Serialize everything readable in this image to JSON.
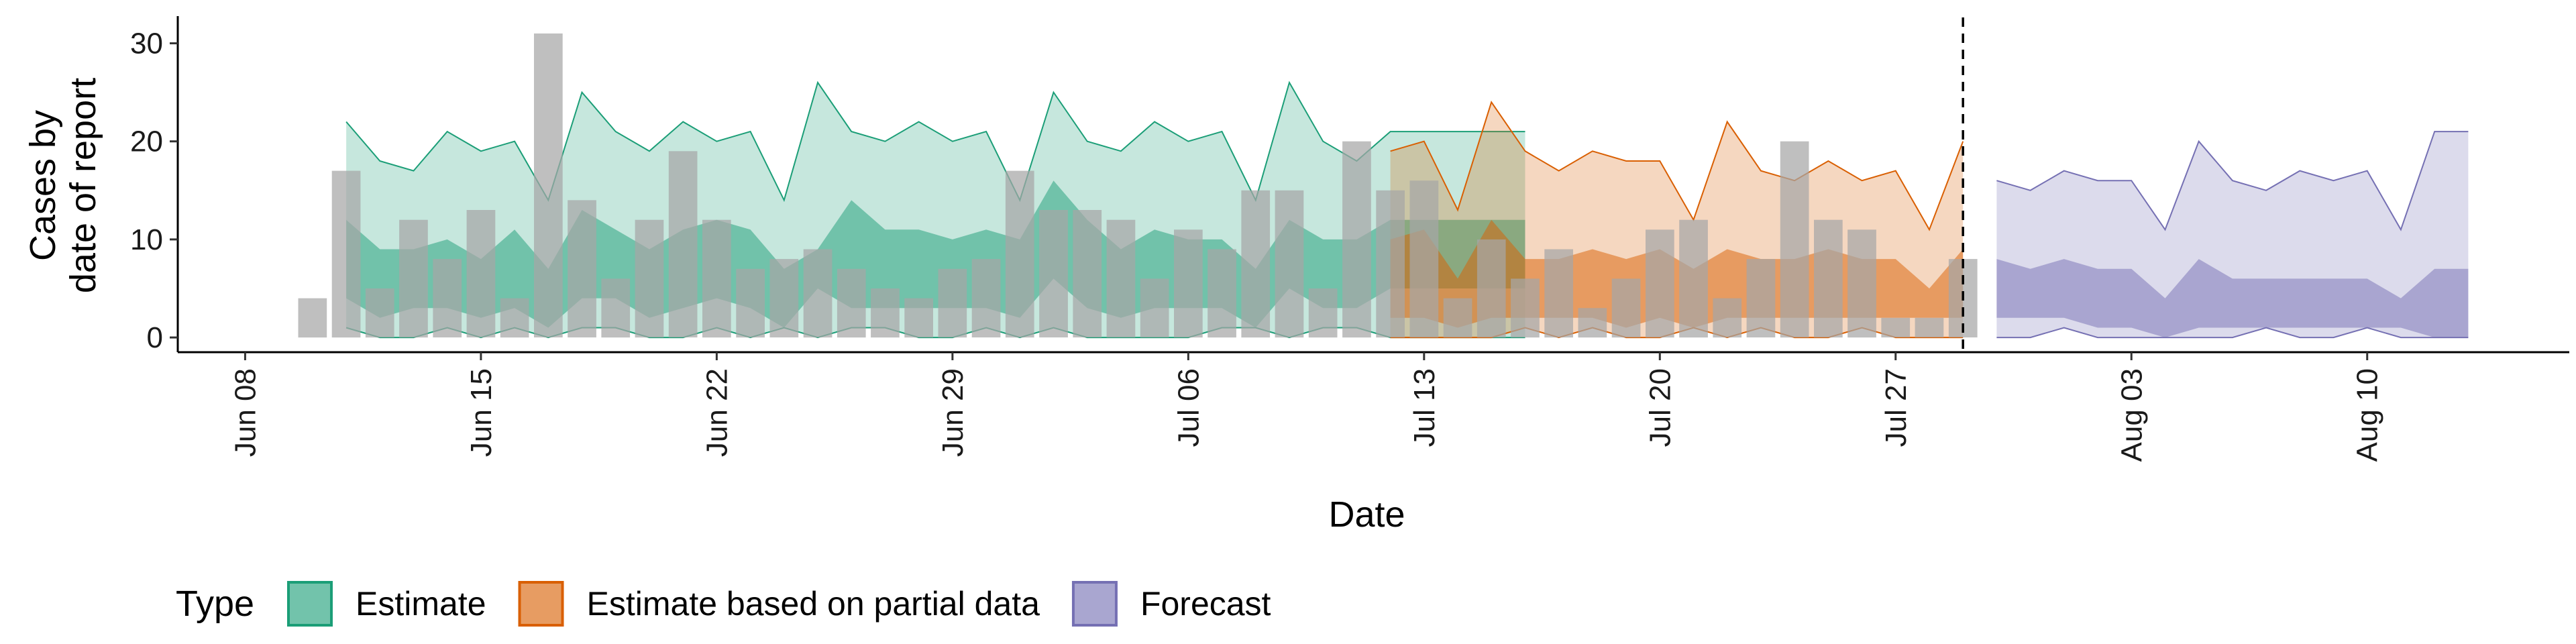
{
  "chart_data": {
    "type": "area",
    "xlabel": "Date",
    "ylabel_lines": [
      "Cases by",
      "date of report"
    ],
    "ylim": [
      -1.5,
      32.5
    ],
    "yticks": [
      0,
      10,
      20,
      30
    ],
    "xlim": [
      "2020-06-06",
      "2020-08-16"
    ],
    "xticks": [
      {
        "date": "2020-06-08",
        "label": "Jun 08"
      },
      {
        "date": "2020-06-15",
        "label": "Jun 15"
      },
      {
        "date": "2020-06-22",
        "label": "Jun 22"
      },
      {
        "date": "2020-06-29",
        "label": "Jun 29"
      },
      {
        "date": "2020-07-06",
        "label": "Jul 06"
      },
      {
        "date": "2020-07-13",
        "label": "Jul 13"
      },
      {
        "date": "2020-07-20",
        "label": "Jul 20"
      },
      {
        "date": "2020-07-27",
        "label": "Jul 27"
      },
      {
        "date": "2020-08-03",
        "label": "Aug 03"
      },
      {
        "date": "2020-08-10",
        "label": "Aug 10"
      }
    ],
    "vline_date": "2020-07-29",
    "legend": {
      "title": "Type",
      "position": "bottom",
      "items": [
        "Estimate",
        "Estimate based on partial data",
        "Forecast"
      ]
    },
    "colors": {
      "Estimate": {
        "fill": "#1b9e77",
        "line": "#1b9e77"
      },
      "Estimate based on partial data": {
        "fill": "#d95f02",
        "line": "#d95f02"
      },
      "Forecast": {
        "fill": "#7570b3",
        "line": "#7570b3"
      },
      "bars": "#a6a6a6"
    },
    "observed": {
      "start": "2020-06-10",
      "values": [
        4,
        17,
        5,
        12,
        8,
        13,
        4,
        31,
        14,
        6,
        12,
        19,
        12,
        7,
        8,
        9,
        7,
        5,
        4,
        7,
        8,
        17,
        13,
        13,
        12,
        6,
        11,
        9,
        15,
        15,
        5,
        20,
        15,
        16,
        4,
        10,
        6,
        9,
        3,
        6,
        11,
        12,
        4,
        8,
        20,
        12,
        11,
        2,
        2,
        8
      ]
    },
    "series": [
      {
        "name": "Estimate",
        "start": "2020-06-11",
        "outer_lo": [
          1,
          0,
          0,
          1,
          0,
          1,
          0,
          1,
          1,
          0,
          0,
          1,
          0,
          1,
          0,
          1,
          1,
          0,
          0,
          1,
          0,
          1,
          0,
          0,
          0,
          0,
          1,
          1,
          0,
          1,
          1,
          0,
          0,
          0,
          0,
          0
        ],
        "outer_hi": [
          22,
          18,
          17,
          21,
          19,
          20,
          14,
          25,
          21,
          19,
          22,
          20,
          21,
          14,
          26,
          21,
          20,
          22,
          20,
          21,
          14,
          25,
          20,
          19,
          22,
          20,
          21,
          14,
          26,
          20,
          18,
          21,
          21,
          21,
          21,
          21
        ],
        "inner_lo": [
          4,
          2,
          3,
          3,
          2,
          3,
          1,
          4,
          4,
          2,
          3,
          4,
          3,
          1,
          5,
          3,
          3,
          3,
          3,
          3,
          2,
          6,
          3,
          2,
          3,
          3,
          3,
          1,
          5,
          3,
          3,
          5,
          5,
          5,
          5,
          5
        ],
        "inner_hi": [
          12,
          9,
          9,
          10,
          8,
          11,
          7,
          13,
          11,
          9,
          11,
          12,
          11,
          7,
          9,
          14,
          11,
          11,
          10,
          11,
          10,
          16,
          12,
          9,
          11,
          10,
          10,
          7,
          12,
          10,
          10,
          12,
          12,
          12,
          12,
          12
        ]
      },
      {
        "name": "Estimate based on partial data",
        "start": "2020-07-12",
        "outer_lo": [
          0,
          0,
          0,
          0,
          1,
          0,
          1,
          0,
          0,
          1,
          0,
          1,
          0,
          0,
          1,
          0,
          0,
          0
        ],
        "outer_hi": [
          19,
          20,
          13,
          24,
          19,
          17,
          19,
          18,
          18,
          12,
          22,
          17,
          16,
          18,
          16,
          17,
          11,
          20
        ],
        "inner_lo": [
          2,
          2,
          1,
          2,
          2,
          2,
          2,
          1,
          2,
          1,
          2,
          2,
          2,
          2,
          2,
          2,
          2,
          2
        ],
        "inner_hi": [
          10,
          11,
          6,
          12,
          8,
          8,
          9,
          8,
          9,
          7,
          9,
          8,
          8,
          9,
          8,
          8,
          5,
          9
        ]
      },
      {
        "name": "Forecast",
        "start": "2020-07-30",
        "outer_lo": [
          0,
          0,
          1,
          0,
          0,
          0,
          0,
          0,
          1,
          0,
          0,
          1,
          0,
          0,
          0
        ],
        "outer_hi": [
          16,
          15,
          17,
          16,
          16,
          11,
          20,
          16,
          15,
          17,
          16,
          17,
          11,
          21,
          21
        ],
        "inner_lo": [
          2,
          2,
          2,
          1,
          1,
          0,
          1,
          1,
          1,
          1,
          1,
          1,
          1,
          0,
          0
        ],
        "inner_hi": [
          8,
          7,
          8,
          7,
          7,
          4,
          8,
          6,
          6,
          6,
          6,
          6,
          4,
          7,
          7
        ]
      }
    ]
  }
}
